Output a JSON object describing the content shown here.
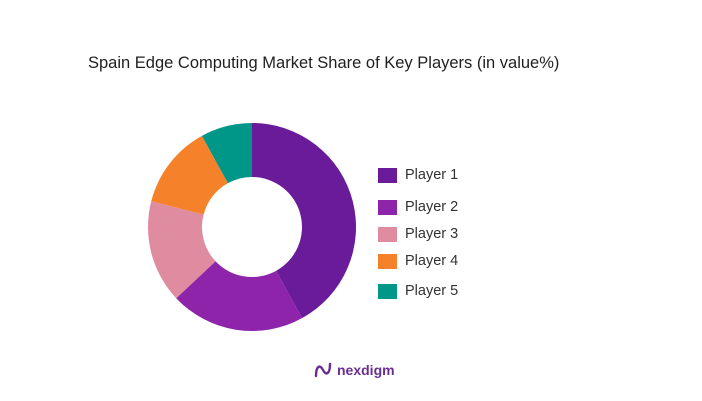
{
  "chart_data": {
    "type": "pie",
    "title": "Spain Edge Computing Market Share of Key Players (in value%)",
    "categories": [
      "Player 1",
      "Player 2",
      "Player 3",
      "Player 4",
      "Player 5"
    ],
    "values": [
      42,
      21,
      16,
      13,
      8
    ],
    "colors": [
      "#6a1b9a",
      "#8e24aa",
      "#e08ca0",
      "#f5822a",
      "#009688"
    ],
    "legend_position": "right"
  },
  "brand": {
    "name": "nexdigm",
    "logo_icon": "nexdigm-logo-icon"
  }
}
